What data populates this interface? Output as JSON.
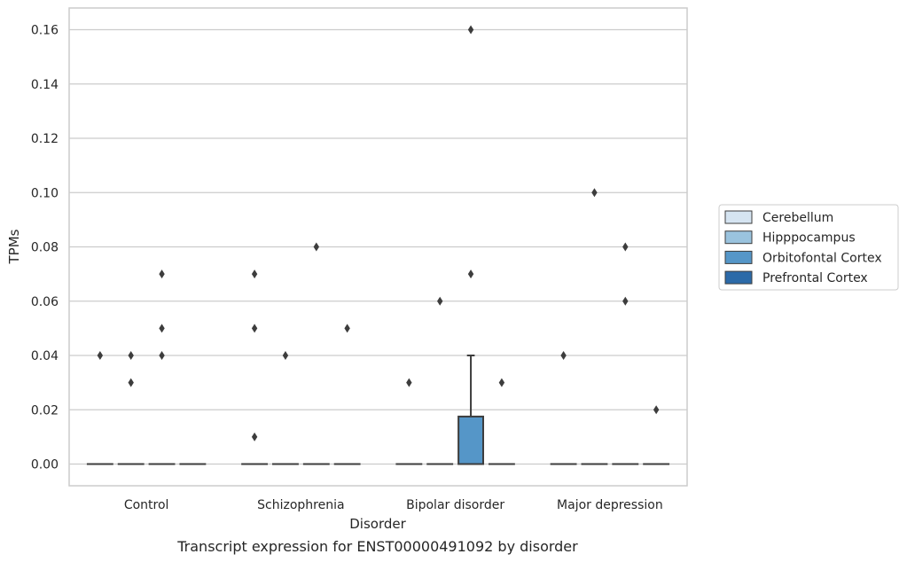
{
  "caption": "Transcript expression for ENST00000491092 by disorder",
  "chart_data": {
    "type": "box",
    "xlabel": "Disorder",
    "ylabel": "TPMs",
    "ylim": [
      -0.008,
      0.168
    ],
    "yticks": [
      "0.00",
      "0.02",
      "0.04",
      "0.06",
      "0.08",
      "0.10",
      "0.12",
      "0.14",
      "0.16"
    ],
    "grid": true,
    "legend_position": "right",
    "categories": [
      "Control",
      "Schizophrenia",
      "Bipolar disorder",
      "Major depression"
    ],
    "series": [
      {
        "name": "Cerebellum",
        "color": "#d5e4f1",
        "boxes": [
          {
            "q1": 0,
            "median": 0,
            "q3": 0,
            "whisker_low": 0,
            "whisker_high": 0,
            "outliers": [
              0.04
            ]
          },
          {
            "q1": 0,
            "median": 0,
            "q3": 0,
            "whisker_low": 0,
            "whisker_high": 0,
            "outliers": [
              0.07,
              0.05,
              0.01
            ]
          },
          {
            "q1": 0,
            "median": 0,
            "q3": 0,
            "whisker_low": 0,
            "whisker_high": 0,
            "outliers": [
              0.03
            ]
          },
          {
            "q1": 0,
            "median": 0,
            "q3": 0,
            "whisker_low": 0,
            "whisker_high": 0,
            "outliers": [
              0.04
            ]
          }
        ]
      },
      {
        "name": "Hipppocampus",
        "color": "#9ac3de",
        "boxes": [
          {
            "q1": 0,
            "median": 0,
            "q3": 0,
            "whisker_low": 0,
            "whisker_high": 0,
            "outliers": [
              0.04,
              0.03
            ]
          },
          {
            "q1": 0,
            "median": 0,
            "q3": 0,
            "whisker_low": 0,
            "whisker_high": 0,
            "outliers": [
              0.04
            ]
          },
          {
            "q1": 0,
            "median": 0,
            "q3": 0,
            "whisker_low": 0,
            "whisker_high": 0,
            "outliers": [
              0.06
            ]
          },
          {
            "q1": 0,
            "median": 0,
            "q3": 0,
            "whisker_low": 0,
            "whisker_high": 0,
            "outliers": [
              0.1
            ]
          }
        ]
      },
      {
        "name": "Orbitofontal Cortex",
        "color": "#5596c8",
        "boxes": [
          {
            "q1": 0,
            "median": 0,
            "q3": 0,
            "whisker_low": 0,
            "whisker_high": 0,
            "outliers": [
              0.07,
              0.05,
              0.04
            ]
          },
          {
            "q1": 0,
            "median": 0,
            "q3": 0,
            "whisker_low": 0,
            "whisker_high": 0,
            "outliers": [
              0.08
            ]
          },
          {
            "q1": 0,
            "median": 0,
            "q3": 0.0175,
            "whisker_low": 0,
            "whisker_high": 0.04,
            "outliers": [
              0.16,
              0.07
            ]
          },
          {
            "q1": 0,
            "median": 0,
            "q3": 0,
            "whisker_low": 0,
            "whisker_high": 0,
            "outliers": [
              0.08,
              0.06
            ]
          }
        ]
      },
      {
        "name": "Prefrontal Cortex",
        "color": "#2c6aa8",
        "boxes": [
          {
            "q1": 0,
            "median": 0,
            "q3": 0,
            "whisker_low": 0,
            "whisker_high": 0,
            "outliers": []
          },
          {
            "q1": 0,
            "median": 0,
            "q3": 0,
            "whisker_low": 0,
            "whisker_high": 0,
            "outliers": [
              0.05
            ]
          },
          {
            "q1": 0,
            "median": 0,
            "q3": 0,
            "whisker_low": 0,
            "whisker_high": 0,
            "outliers": [
              0.03
            ]
          },
          {
            "q1": 0,
            "median": 0,
            "q3": 0,
            "whisker_low": 0,
            "whisker_high": 0,
            "outliers": [
              0.02
            ]
          }
        ]
      }
    ]
  }
}
